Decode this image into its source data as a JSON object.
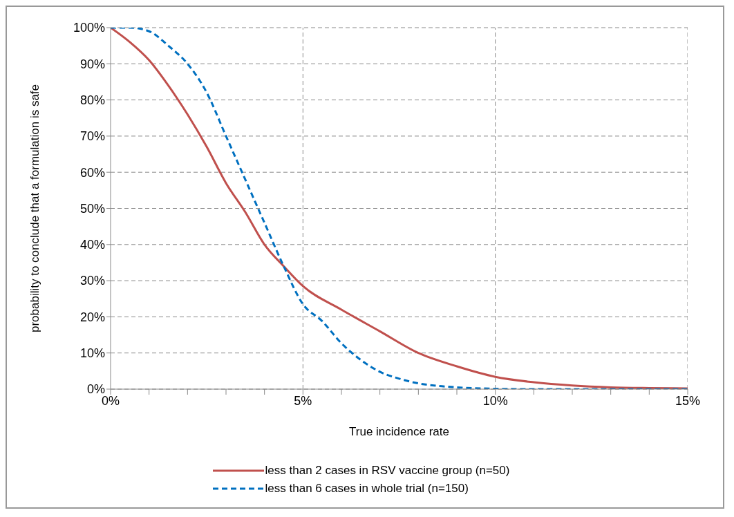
{
  "chart_data": {
    "type": "line",
    "xlabel": "True incidence  rate",
    "ylabel": "probability  to conclude  that  a formulation  is safe",
    "xlim": [
      0,
      15
    ],
    "ylim": [
      0,
      100
    ],
    "xticks": [
      {
        "value": 0,
        "label": "0%"
      },
      {
        "value": 1,
        "label": null
      },
      {
        "value": 2,
        "label": null
      },
      {
        "value": 3,
        "label": null
      },
      {
        "value": 4,
        "label": null
      },
      {
        "value": 5,
        "label": "5%"
      },
      {
        "value": 6,
        "label": null
      },
      {
        "value": 7,
        "label": null
      },
      {
        "value": 8,
        "label": null
      },
      {
        "value": 9,
        "label": null
      },
      {
        "value": 10,
        "label": "10%"
      },
      {
        "value": 11,
        "label": null
      },
      {
        "value": 12,
        "label": null
      },
      {
        "value": 13,
        "label": null
      },
      {
        "value": 14,
        "label": null
      },
      {
        "value": 15,
        "label": "15%"
      }
    ],
    "yticks": [
      {
        "value": 0,
        "label": "0%"
      },
      {
        "value": 10,
        "label": "10%"
      },
      {
        "value": 20,
        "label": "20%"
      },
      {
        "value": 30,
        "label": "30%"
      },
      {
        "value": 40,
        "label": "40%"
      },
      {
        "value": 50,
        "label": "50%"
      },
      {
        "value": 60,
        "label": "60%"
      },
      {
        "value": 70,
        "label": "70%"
      },
      {
        "value": 80,
        "label": "80%"
      },
      {
        "value": 90,
        "label": "90%"
      },
      {
        "value": 100,
        "label": "100%"
      }
    ],
    "grid": true,
    "legend": "bottom",
    "marker": "none",
    "series": [
      {
        "name": "less than 2 cases in RSV vaccine group (n=50)",
        "color": "#c0504d",
        "line_style": "solid",
        "x": [
          0,
          0.5,
          1,
          1.5,
          2,
          2.5,
          3,
          3.5,
          4,
          4.5,
          5,
          6,
          7,
          8,
          9,
          10,
          11,
          12,
          13,
          14,
          15
        ],
        "values": [
          100,
          96,
          91,
          84,
          76,
          67,
          57,
          49,
          40,
          34,
          28.5,
          22,
          16,
          10,
          6.3,
          3.4,
          1.9,
          1,
          0.5,
          0.3,
          0.2
        ]
      },
      {
        "name": "less than 6 cases in whole trial (n=150)",
        "color": "#0070c0",
        "line_style": "dashed",
        "x": [
          0,
          0.5,
          1,
          1.5,
          2,
          2.5,
          3,
          3.5,
          4,
          4.5,
          5,
          5.5,
          6,
          6.5,
          7,
          7.5,
          8,
          8.5,
          9,
          10,
          11,
          12,
          13,
          14,
          15
        ],
        "values": [
          100,
          100,
          99,
          95,
          90,
          82,
          70,
          58,
          46,
          34,
          23.5,
          18.8,
          12.7,
          8.1,
          4.8,
          2.9,
          1.6,
          0.9,
          0.5,
          0.1,
          0,
          0,
          0,
          0,
          0
        ]
      }
    ]
  }
}
